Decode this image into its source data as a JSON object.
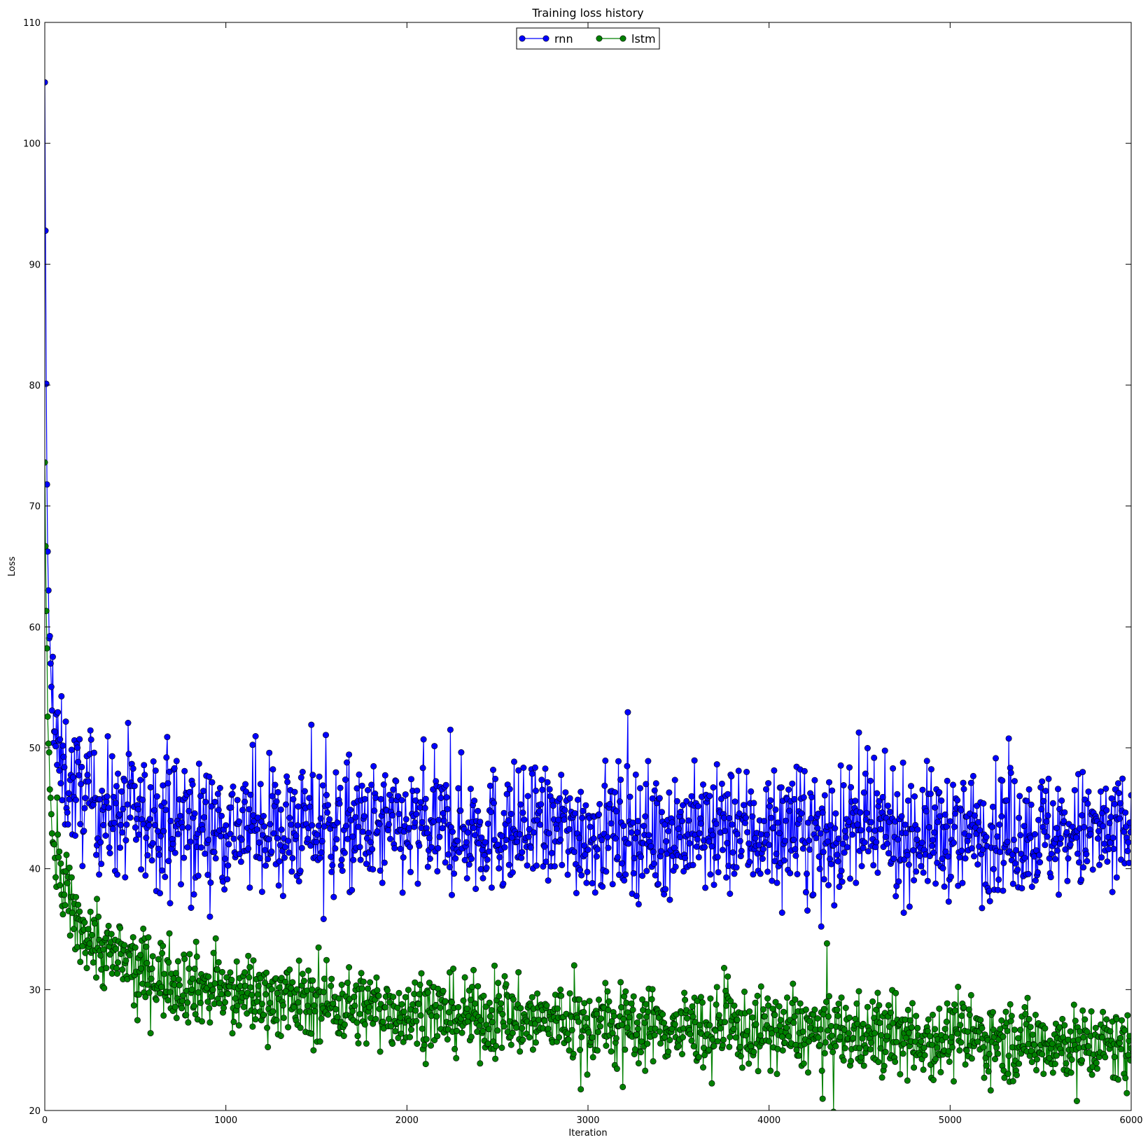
{
  "chart_data": {
    "type": "line",
    "title": "Training loss history",
    "xlabel": "Iteration",
    "ylabel": "Loss",
    "xlim": [
      0,
      6000
    ],
    "ylim": [
      20,
      110
    ],
    "xticks": [
      0,
      1000,
      2000,
      3000,
      4000,
      5000,
      6000
    ],
    "yticks": [
      20,
      30,
      40,
      50,
      60,
      70,
      80,
      90,
      100,
      110
    ],
    "legend": {
      "placement": "upper center",
      "columns": 2
    },
    "grid": false,
    "markers": true,
    "series": [
      {
        "name": "rnn",
        "color": "#0000ff",
        "marker": "circle",
        "x": [
          0,
          10,
          20,
          30,
          40,
          60,
          80,
          100,
          150,
          200,
          300,
          400,
          500,
          700,
          1000,
          1500,
          2000,
          2500,
          3000,
          3500,
          4000,
          4500,
          5000,
          5500,
          6000
        ],
        "values": [
          104.0,
          74.0,
          62.0,
          57.0,
          53.0,
          50.5,
          49.0,
          48.0,
          47.0,
          46.0,
          45.0,
          44.5,
          44.0,
          43.8,
          43.5,
          43.3,
          43.2,
          43.2,
          43.1,
          43.1,
          43.0,
          43.0,
          43.0,
          42.9,
          42.9
        ],
        "noise_spread": 2.6
      },
      {
        "name": "lstm",
        "color": "#008000",
        "marker": "circle",
        "x": [
          0,
          10,
          20,
          30,
          40,
          60,
          80,
          100,
          150,
          200,
          300,
          400,
          500,
          700,
          1000,
          1500,
          2000,
          2500,
          3000,
          3500,
          4000,
          4500,
          5000,
          5500,
          6000
        ],
        "values": [
          73.0,
          59.0,
          50.0,
          46.0,
          43.0,
          41.0,
          39.5,
          38.5,
          36.5,
          35.0,
          33.5,
          32.5,
          31.8,
          30.8,
          29.8,
          28.9,
          28.2,
          27.6,
          27.2,
          26.9,
          26.6,
          26.3,
          26.0,
          25.7,
          25.4
        ],
        "noise_spread": 1.6
      }
    ]
  }
}
